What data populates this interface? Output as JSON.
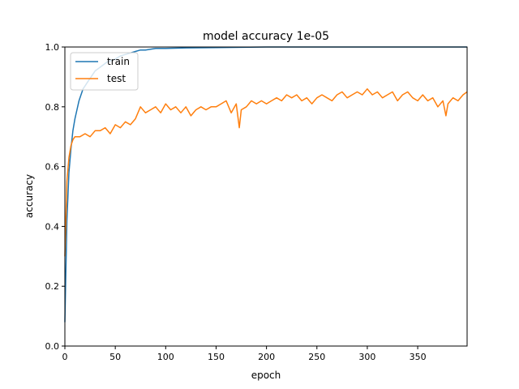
{
  "chart_data": {
    "type": "line",
    "title": "model accuracy 1e-05",
    "xlabel": "epoch",
    "ylabel": "accuracy",
    "xlim": [
      0,
      399
    ],
    "ylim": [
      0.0,
      1.0
    ],
    "x_ticks": [
      0,
      50,
      100,
      150,
      200,
      250,
      300,
      350
    ],
    "y_ticks": [
      0.0,
      0.2,
      0.4,
      0.6,
      0.8,
      1.0
    ],
    "grid": false,
    "legend": "upper left",
    "series": [
      {
        "name": "train",
        "color": "#1f77b4",
        "x": [
          0,
          2,
          4,
          6,
          8,
          10,
          12,
          14,
          16,
          18,
          20,
          22,
          24,
          26,
          28,
          30,
          34,
          38,
          42,
          46,
          50,
          55,
          60,
          65,
          70,
          75,
          80,
          90,
          100,
          120,
          150,
          200,
          250,
          300,
          350,
          399
        ],
        "y": [
          0.08,
          0.42,
          0.58,
          0.66,
          0.72,
          0.76,
          0.79,
          0.82,
          0.84,
          0.86,
          0.87,
          0.88,
          0.89,
          0.9,
          0.91,
          0.92,
          0.93,
          0.94,
          0.95,
          0.955,
          0.96,
          0.97,
          0.975,
          0.98,
          0.985,
          0.99,
          0.99,
          0.995,
          0.995,
          0.997,
          0.998,
          1.0,
          1.0,
          1.0,
          1.0,
          1.0
        ]
      },
      {
        "name": "test",
        "color": "#ff7f0e",
        "x": [
          0,
          2,
          4,
          6,
          8,
          10,
          15,
          20,
          25,
          30,
          35,
          40,
          45,
          50,
          55,
          60,
          65,
          70,
          75,
          80,
          85,
          90,
          95,
          100,
          105,
          110,
          115,
          120,
          125,
          130,
          135,
          140,
          145,
          150,
          155,
          160,
          165,
          170,
          173,
          175,
          180,
          185,
          190,
          195,
          200,
          205,
          210,
          215,
          220,
          225,
          230,
          235,
          240,
          245,
          250,
          255,
          260,
          265,
          270,
          275,
          280,
          285,
          290,
          295,
          300,
          305,
          310,
          315,
          320,
          325,
          330,
          335,
          340,
          345,
          350,
          355,
          360,
          365,
          370,
          375,
          378,
          380,
          385,
          390,
          395,
          399
        ],
        "y": [
          0.3,
          0.55,
          0.63,
          0.67,
          0.69,
          0.7,
          0.7,
          0.71,
          0.7,
          0.72,
          0.72,
          0.73,
          0.71,
          0.74,
          0.73,
          0.75,
          0.74,
          0.76,
          0.8,
          0.78,
          0.79,
          0.8,
          0.78,
          0.81,
          0.79,
          0.8,
          0.78,
          0.8,
          0.77,
          0.79,
          0.8,
          0.79,
          0.8,
          0.8,
          0.81,
          0.82,
          0.78,
          0.81,
          0.73,
          0.79,
          0.8,
          0.82,
          0.81,
          0.82,
          0.81,
          0.82,
          0.83,
          0.82,
          0.84,
          0.83,
          0.84,
          0.82,
          0.83,
          0.81,
          0.83,
          0.84,
          0.83,
          0.82,
          0.84,
          0.85,
          0.83,
          0.84,
          0.85,
          0.84,
          0.86,
          0.84,
          0.85,
          0.83,
          0.84,
          0.85,
          0.82,
          0.84,
          0.85,
          0.83,
          0.82,
          0.84,
          0.82,
          0.83,
          0.8,
          0.82,
          0.77,
          0.81,
          0.83,
          0.82,
          0.84,
          0.85
        ]
      }
    ]
  }
}
